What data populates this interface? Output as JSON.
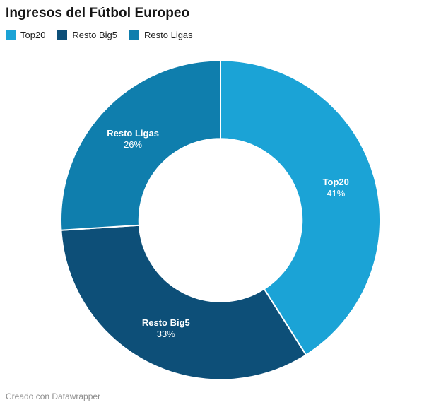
{
  "header": {
    "title": "Ingresos del Fútbol Europeo"
  },
  "footer": {
    "text": "Creado con Datawrapper"
  },
  "chart_data": {
    "type": "pie",
    "subtype": "donut",
    "title": "Ingresos del Fútbol Europeo",
    "legend_position": "top",
    "direction": "clockwise",
    "start_angle_deg": 0,
    "inner_radius_ratio": 0.51,
    "separator_color": "#ffffff",
    "label_format": "name + percent",
    "slices": [
      {
        "label": "Top20",
        "value": 41,
        "display": "41%",
        "color": "#1BA3D6"
      },
      {
        "label": "Resto Big5",
        "value": 33,
        "display": "33%",
        "color": "#0D4F78"
      },
      {
        "label": "Resto Ligas",
        "value": 26,
        "display": "26%",
        "color": "#0F7EAD"
      }
    ]
  }
}
